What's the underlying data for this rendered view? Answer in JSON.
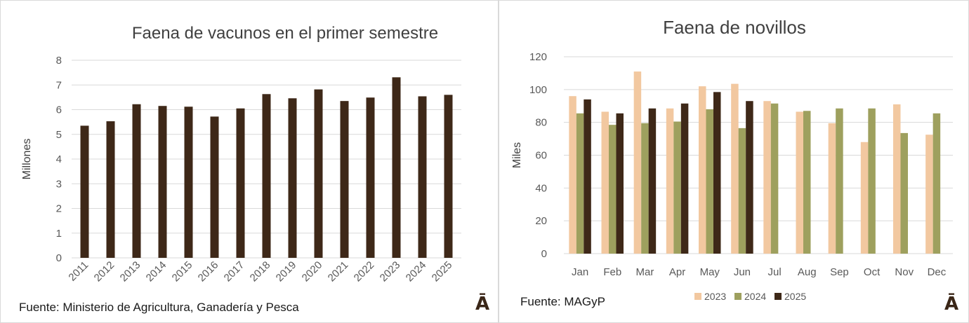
{
  "colors": {
    "dark_brown": "#3e2818",
    "peach": "#f2c8a0",
    "olive": "#9ea05e",
    "grid": "#d9d9d9"
  },
  "left_panel": {
    "source": "Fuente: Ministerio de Agricultura, Ganadería y Pesca",
    "logo": "Ā"
  },
  "right_panel": {
    "source": "Fuente: MAGyP",
    "logo": "Ā"
  },
  "chart_data": [
    {
      "type": "bar",
      "title": "Faena de vacunos en el primer semestre",
      "xlabel": "",
      "ylabel": "Millones",
      "ylim": [
        0,
        8
      ],
      "yticks": [
        "0",
        "1",
        "2",
        "3",
        "4",
        "5",
        "6",
        "7",
        "8"
      ],
      "grid": true,
      "categories": [
        "2011",
        "2012",
        "2013",
        "2014",
        "2015",
        "2016",
        "2017",
        "2018",
        "2019",
        "2020",
        "2021",
        "2022",
        "2023",
        "2024",
        "2025"
      ],
      "values": [
        5.35,
        5.53,
        6.22,
        6.15,
        6.12,
        5.72,
        6.05,
        6.63,
        6.46,
        6.82,
        6.35,
        6.49,
        7.31,
        6.54,
        6.6
      ]
    },
    {
      "type": "bar",
      "title": "Faena de novillos",
      "xlabel": "",
      "ylabel": "Miles",
      "ylim": [
        0,
        120
      ],
      "yticks": [
        "0",
        "20",
        "40",
        "60",
        "80",
        "100",
        "120"
      ],
      "grid": true,
      "legend": "bottom",
      "categories": [
        "Jan",
        "Feb",
        "Mar",
        "Apr",
        "May",
        "Jun",
        "Jul",
        "Aug",
        "Sep",
        "Oct",
        "Nov",
        "Dec"
      ],
      "series": [
        {
          "name": "2023",
          "values": [
            96,
            86.5,
            111,
            88.5,
            102,
            103.5,
            93,
            86.5,
            79.5,
            68,
            91,
            72.5
          ]
        },
        {
          "name": "2024",
          "values": [
            85.5,
            78.5,
            79.5,
            80.5,
            88,
            76.5,
            91.5,
            87,
            88.5,
            88.5,
            73.5,
            85.5
          ]
        },
        {
          "name": "2025",
          "values": [
            94,
            85.5,
            88.5,
            91.5,
            98.5,
            93,
            null,
            null,
            null,
            null,
            null,
            null
          ]
        }
      ]
    }
  ]
}
